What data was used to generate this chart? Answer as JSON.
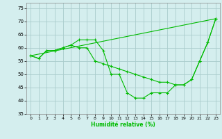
{
  "xlabel": "Humidité relative (%)",
  "background_color": "#d4eeee",
  "grid_color": "#aacccc",
  "line_color": "#00bb00",
  "xlim": [
    -0.5,
    23.5
  ],
  "ylim": [
    35,
    77
  ],
  "yticks": [
    35,
    40,
    45,
    50,
    55,
    60,
    65,
    70,
    75
  ],
  "xticks": [
    0,
    1,
    2,
    3,
    4,
    5,
    6,
    7,
    8,
    9,
    10,
    11,
    12,
    13,
    14,
    15,
    16,
    17,
    18,
    19,
    20,
    21,
    22,
    23
  ],
  "series1_x": [
    0,
    1,
    2,
    3,
    4,
    5,
    6,
    7,
    8,
    9,
    10,
    11,
    12,
    13,
    14,
    15,
    16,
    17,
    18,
    19,
    20,
    21,
    22,
    23
  ],
  "series1_y": [
    57,
    56,
    59,
    59,
    60,
    61,
    63,
    63,
    63,
    59,
    50,
    50,
    43,
    41,
    41,
    43,
    43,
    43,
    46,
    46,
    48,
    55,
    62,
    71
  ],
  "series2_x": [
    0,
    1,
    2,
    3,
    4,
    5,
    6,
    7,
    8,
    9,
    10,
    11,
    12,
    13,
    14,
    15,
    16,
    17,
    18,
    19,
    20,
    21,
    22,
    23
  ],
  "series2_y": [
    57,
    56,
    59,
    59,
    60,
    61,
    60,
    60,
    55,
    54,
    53,
    52,
    51,
    50,
    49,
    48,
    47,
    47,
    46,
    46,
    48,
    55,
    62,
    71
  ],
  "series3_x": [
    0,
    23
  ],
  "series3_y": [
    57,
    71
  ]
}
